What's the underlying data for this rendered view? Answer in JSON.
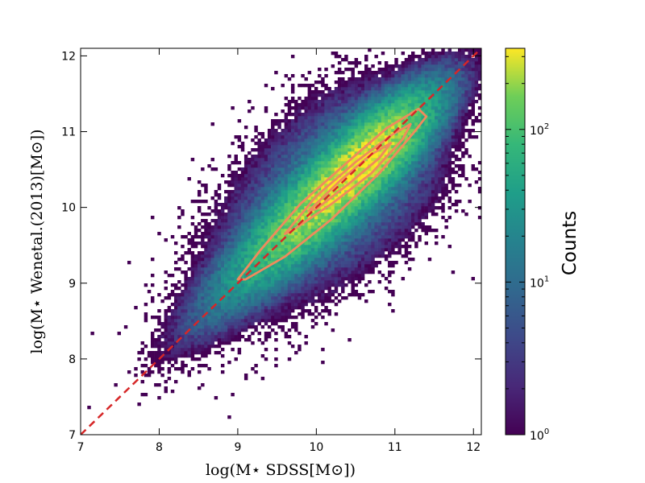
{
  "chart_data": {
    "type": "heatmap",
    "xlabel": "log(M⋆ SDSS[M⊙])",
    "ylabel": "log(M⋆ Wenetal.(2013)[M⊙])",
    "xlim": [
      7.0,
      12.1
    ],
    "ylim": [
      7.0,
      12.1
    ],
    "x_ticks": [
      7,
      8,
      9,
      10,
      11,
      12
    ],
    "y_ticks": [
      7,
      8,
      9,
      10,
      11,
      12
    ],
    "grid": false,
    "colormap": "viridis",
    "colorbar": {
      "label": "Counts",
      "scale": "log",
      "range": [
        1,
        340
      ],
      "ticks": [
        {
          "base": "10",
          "exp": "0",
          "value": 1
        },
        {
          "base": "10",
          "exp": "1",
          "value": 10
        },
        {
          "base": "10",
          "exp": "2",
          "value": 100
        }
      ]
    },
    "reference_line": {
      "style": "dashed",
      "color": "#d62728",
      "points": [
        [
          7.0,
          7.0
        ],
        [
          12.1,
          12.1
        ]
      ]
    },
    "contour_color": "#f08a5d",
    "distribution": {
      "core_ridge": [
        [
          8.1,
          8.1
        ],
        [
          9.0,
          9.0
        ],
        [
          10.0,
          10.05
        ],
        [
          10.8,
          10.75
        ],
        [
          11.5,
          11.35
        ]
      ],
      "peak_center": [
        10.6,
        10.6
      ],
      "peak_count": 340,
      "relation_scatter_dex": 0.2
    },
    "contours": [
      {
        "level": "outer",
        "points": [
          [
            9.0,
            9.05
          ],
          [
            9.3,
            9.45
          ],
          [
            9.8,
            10.05
          ],
          [
            10.4,
            10.6
          ],
          [
            10.9,
            11.05
          ],
          [
            11.3,
            11.3
          ],
          [
            11.4,
            11.2
          ],
          [
            11.25,
            11.0
          ],
          [
            10.8,
            10.45
          ],
          [
            10.2,
            9.85
          ],
          [
            9.6,
            9.35
          ],
          [
            9.1,
            9.05
          ]
        ]
      },
      {
        "level": "middle",
        "points": [
          [
            9.6,
            9.65
          ],
          [
            10.0,
            10.15
          ],
          [
            10.5,
            10.6
          ],
          [
            10.95,
            10.95
          ],
          [
            11.2,
            11.1
          ],
          [
            11.1,
            10.9
          ],
          [
            10.7,
            10.45
          ],
          [
            10.2,
            10.05
          ],
          [
            9.7,
            9.7
          ]
        ]
      },
      {
        "level": "inner",
        "points": [
          [
            9.9,
            9.95
          ],
          [
            10.3,
            10.35
          ],
          [
            10.7,
            10.7
          ],
          [
            10.95,
            10.85
          ],
          [
            10.8,
            10.65
          ],
          [
            10.4,
            10.3
          ],
          [
            10.0,
            9.98
          ]
        ]
      }
    ]
  }
}
